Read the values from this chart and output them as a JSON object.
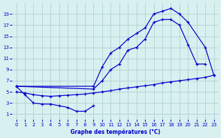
{
  "xlabel": "Graphe des températures (°C)",
  "bg_color": "#d8f0f0",
  "grid_color": "#a8c8c8",
  "line_color": "#0000cc",
  "xlim": [
    -0.5,
    23.5
  ],
  "ylim": [
    0,
    21
  ],
  "xticks": [
    0,
    1,
    2,
    3,
    4,
    5,
    6,
    7,
    8,
    9,
    10,
    11,
    12,
    13,
    14,
    15,
    16,
    17,
    18,
    19,
    20,
    21,
    22,
    23
  ],
  "yticks": [
    1,
    3,
    5,
    7,
    9,
    11,
    13,
    15,
    17,
    19
  ],
  "curve1_x": [
    0,
    9,
    10,
    11,
    12,
    13,
    14,
    15,
    16,
    17,
    18,
    19,
    20,
    22,
    23
  ],
  "curve1_y": [
    6,
    6,
    9.5,
    12,
    13,
    14.5,
    15.5,
    16.5,
    19,
    19.5,
    20,
    19,
    17.5,
    13,
    8
  ],
  "curve2_x": [
    0,
    9,
    10,
    11,
    12,
    13,
    14,
    15,
    16,
    17,
    18,
    19,
    20,
    21,
    22
  ],
  "curve2_y": [
    6,
    5.5,
    7,
    9,
    10,
    12.5,
    13,
    14.5,
    17.5,
    18,
    18,
    17,
    13.5,
    10,
    10
  ],
  "curve3_x": [
    0,
    1,
    2,
    3,
    4,
    5,
    6,
    7,
    8,
    9
  ],
  "curve3_y": [
    6,
    4.5,
    3,
    2.8,
    2.8,
    2.5,
    2.2,
    1.5,
    1.5,
    2.5
  ],
  "curve4_x": [
    0,
    1,
    2,
    3,
    4,
    5,
    6,
    7,
    8,
    9,
    10,
    11,
    12,
    13,
    14,
    15,
    16,
    17,
    18,
    19,
    20,
    21,
    22,
    23
  ],
  "curve4_y": [
    5.0,
    4.8,
    4.5,
    4.3,
    4.2,
    4.3,
    4.4,
    4.5,
    4.6,
    4.8,
    5.0,
    5.2,
    5.5,
    5.7,
    5.9,
    6.1,
    6.3,
    6.6,
    6.8,
    7.0,
    7.2,
    7.4,
    7.6,
    8.0
  ]
}
